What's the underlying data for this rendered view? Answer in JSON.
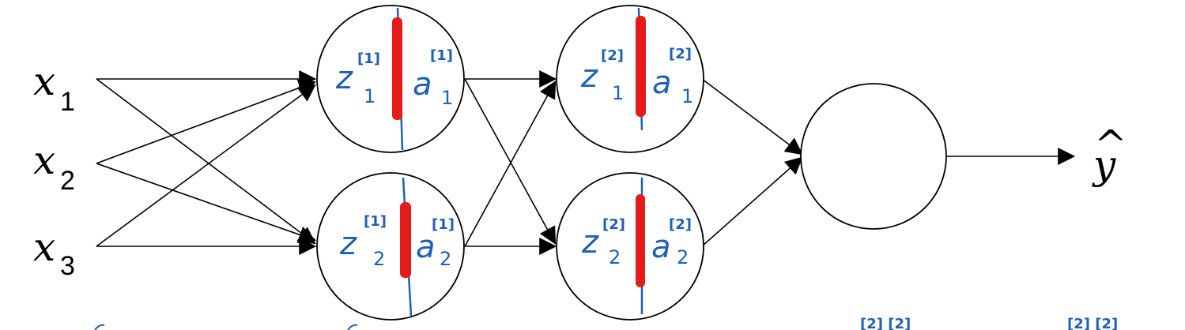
{
  "inputs": [
    {
      "symbol": "x",
      "index": "1"
    },
    {
      "symbol": "x",
      "index": "2"
    },
    {
      "symbol": "x",
      "index": "3"
    }
  ],
  "hidden_units": [
    {
      "z": "z",
      "z_layer": "[1]",
      "z_idx": "1",
      "a": "a",
      "a_layer": "[1]",
      "a_idx": "1"
    },
    {
      "z": "z",
      "z_layer": "[1]",
      "z_idx": "2",
      "a": "a",
      "a_layer": "[1]",
      "a_idx": "2"
    },
    {
      "z": "z",
      "z_layer": "[2]",
      "z_idx": "1",
      "a": "a",
      "a_layer": "[2]",
      "a_idx": "1"
    },
    {
      "z": "z",
      "z_layer": "[2]",
      "z_idx": "2",
      "a": "a",
      "a_layer": "[2]",
      "a_idx": "2"
    }
  ],
  "output": {
    "symbol": "y",
    "hat": "^"
  },
  "bottom_notes": [
    "[2]  [2]",
    "[2]   [2]"
  ],
  "colors": {
    "stroke": "#000000",
    "handwriting": "#1f5fb4",
    "highlight": "#e31b1b"
  }
}
